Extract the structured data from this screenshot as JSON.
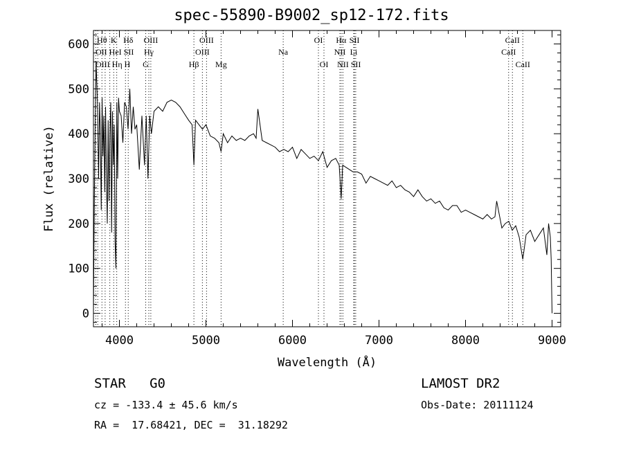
{
  "chart_data": {
    "type": "line",
    "title": "spec-55890-B9002_sp12-172.fits",
    "xlabel": "Wavelength (Å)",
    "ylabel": "Flux (relative)",
    "xlim": [
      3700,
      9100
    ],
    "ylim": [
      -30,
      630
    ],
    "xticks": [
      4000,
      5000,
      6000,
      7000,
      8000,
      9000
    ],
    "yticks": [
      0,
      100,
      200,
      300,
      400,
      500,
      600
    ],
    "series": [
      {
        "name": "spectrum",
        "x": [
          3700,
          3710,
          3720,
          3730,
          3745,
          3760,
          3770,
          3780,
          3790,
          3800,
          3810,
          3820,
          3830,
          3840,
          3850,
          3860,
          3870,
          3880,
          3890,
          3900,
          3910,
          3920,
          3930,
          3940,
          3950,
          3960,
          3970,
          3980,
          3990,
          4000,
          4020,
          4040,
          4060,
          4080,
          4100,
          4120,
          4140,
          4160,
          4180,
          4200,
          4230,
          4260,
          4290,
          4310,
          4330,
          4350,
          4370,
          4400,
          4450,
          4500,
          4550,
          4600,
          4650,
          4700,
          4750,
          4800,
          4840,
          4861,
          4880,
          4920,
          4960,
          5000,
          5050,
          5100,
          5150,
          5175,
          5200,
          5250,
          5300,
          5350,
          5400,
          5450,
          5500,
          5550,
          5580,
          5600,
          5650,
          5700,
          5750,
          5800,
          5850,
          5900,
          5950,
          6000,
          6050,
          6100,
          6150,
          6200,
          6250,
          6300,
          6350,
          6400,
          6450,
          6500,
          6540,
          6563,
          6580,
          6620,
          6660,
          6700,
          6750,
          6800,
          6850,
          6900,
          6950,
          7000,
          7050,
          7100,
          7150,
          7200,
          7250,
          7300,
          7350,
          7400,
          7450,
          7500,
          7550,
          7600,
          7650,
          7700,
          7750,
          7800,
          7850,
          7900,
          7950,
          8000,
          8050,
          8100,
          8150,
          8200,
          8250,
          8300,
          8340,
          8360,
          8380,
          8420,
          8460,
          8500,
          8540,
          8580,
          8620,
          8662,
          8700,
          8750,
          8800,
          8850,
          8900,
          8940,
          8960,
          8980,
          8990,
          9000
        ],
        "y": [
          0,
          250,
          420,
          560,
          480,
          300,
          470,
          400,
          230,
          480,
          350,
          440,
          270,
          460,
          300,
          200,
          430,
          250,
          400,
          470,
          180,
          450,
          330,
          420,
          160,
          100,
          470,
          300,
          480,
          450,
          440,
          380,
          470,
          460,
          410,
          500,
          400,
          460,
          410,
          420,
          320,
          440,
          330,
          440,
          300,
          440,
          400,
          450,
          460,
          450,
          470,
          475,
          470,
          460,
          445,
          430,
          420,
          330,
          430,
          420,
          410,
          420,
          395,
          390,
          380,
          360,
          400,
          380,
          395,
          385,
          390,
          385,
          395,
          400,
          390,
          455,
          385,
          380,
          375,
          370,
          360,
          365,
          360,
          370,
          345,
          365,
          355,
          345,
          350,
          340,
          360,
          325,
          340,
          345,
          330,
          255,
          330,
          325,
          320,
          315,
          315,
          310,
          290,
          305,
          300,
          295,
          290,
          285,
          295,
          280,
          285,
          275,
          270,
          260,
          275,
          260,
          250,
          255,
          245,
          250,
          235,
          230,
          240,
          240,
          225,
          230,
          225,
          220,
          215,
          210,
          220,
          210,
          215,
          250,
          230,
          190,
          200,
          205,
          185,
          195,
          170,
          120,
          175,
          185,
          160,
          175,
          190,
          130,
          200,
          170,
          120,
          0
        ]
      }
    ],
    "lines": [
      {
        "w": 3727,
        "label": "OII",
        "row": 2
      },
      {
        "w": 3750,
        "label": "OIII",
        "row": 3
      },
      {
        "w": 3798,
        "label": "Hθ",
        "row": 1
      },
      {
        "w": 3835,
        "label": "Hη",
        "row": 3
      },
      {
        "w": 3889,
        "label": "HeI",
        "row": 2
      },
      {
        "w": 3934,
        "label": "K",
        "row": 1
      },
      {
        "w": 3969,
        "label": "H",
        "row": 3
      },
      {
        "w": 4070,
        "label": "SII",
        "row": 2
      },
      {
        "w": 4102,
        "label": "Hδ",
        "row": 1
      },
      {
        "w": 4304,
        "label": "G",
        "row": 3
      },
      {
        "w": 4340,
        "label": "Hγ",
        "row": 2
      },
      {
        "w": 4363,
        "label": "OIII",
        "row": 1
      },
      {
        "w": 4861,
        "label": "Hβ",
        "row": 3
      },
      {
        "w": 4959,
        "label": "OIII",
        "row": 2
      },
      {
        "w": 5007,
        "label": "OIII",
        "row": 1
      },
      {
        "w": 5175,
        "label": "Mg",
        "row": 3
      },
      {
        "w": 5893,
        "label": "Na",
        "row": 2
      },
      {
        "w": 6300,
        "label": "OI",
        "row": 1
      },
      {
        "w": 6364,
        "label": "OI",
        "row": 3
      },
      {
        "w": 6548,
        "label": "NII",
        "row": 2
      },
      {
        "w": 6563,
        "label": "Hα",
        "row": 1
      },
      {
        "w": 6583,
        "label": "NII",
        "row": 3
      },
      {
        "w": 6708,
        "label": "Li",
        "row": 2
      },
      {
        "w": 6716,
        "label": "SII",
        "row": 1
      },
      {
        "w": 6731,
        "label": "SII",
        "row": 3
      },
      {
        "w": 8498,
        "label": "CaII",
        "row": 2
      },
      {
        "w": 8542,
        "label": "CaII",
        "row": 1
      },
      {
        "w": 8662,
        "label": "CaII",
        "row": 3
      }
    ]
  },
  "info": {
    "object": "STAR   G0",
    "survey": "LAMOST DR2",
    "cz": "cz = -133.4 ± 45.6 km/s",
    "obs_date": "Obs-Date: 20111124",
    "coords": "RA =  17.68421, DEC =  31.18292"
  }
}
